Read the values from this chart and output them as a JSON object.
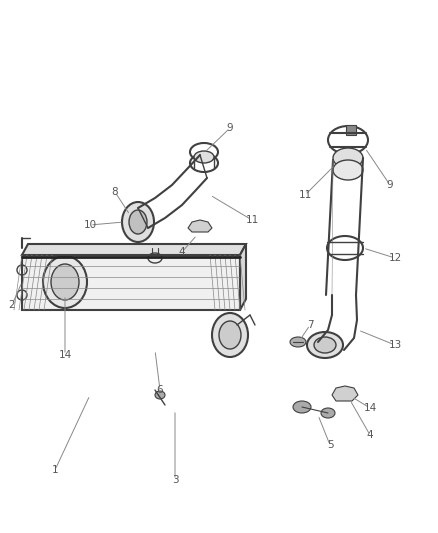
{
  "bg_color": "#ffffff",
  "line_color": "#404040",
  "label_color": "#555555",
  "fig_width": 4.38,
  "fig_height": 5.33,
  "dpi": 100
}
